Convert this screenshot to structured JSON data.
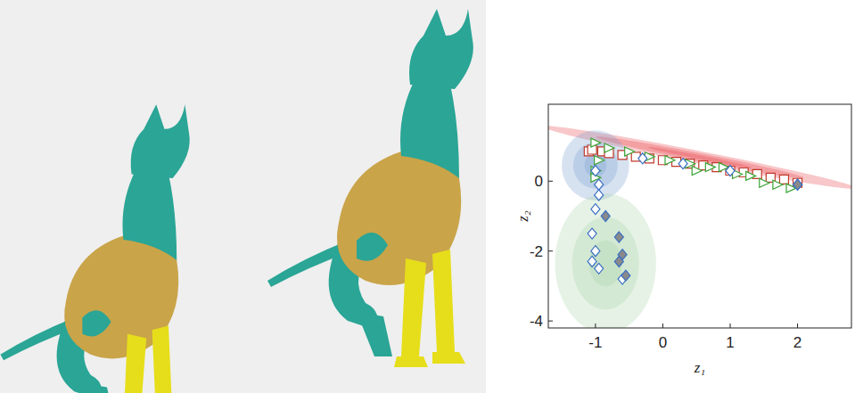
{
  "chart_data": {
    "type": "scatter",
    "x_label": "z₁",
    "y_label": "z₂",
    "xlim": [
      -1.7,
      2.8
    ],
    "ylim": [
      -4.2,
      2.2
    ],
    "xticks": [
      -1,
      0,
      1,
      2
    ],
    "yticks": [
      -4,
      -2,
      0
    ],
    "grid": false,
    "ellipses": [
      {
        "color": "#e8474b",
        "center": [
          0.55,
          0.68
        ],
        "radii": [
          2.5,
          0.17
        ],
        "direction": [
          1,
          -0.38
        ]
      },
      {
        "color": "#7a9fd0",
        "center": [
          -1.0,
          0.45
        ],
        "radii": [
          0.5,
          1.0
        ],
        "direction": [
          1,
          0
        ]
      },
      {
        "color": "#a9d4a9",
        "center": [
          -0.85,
          -2.35
        ],
        "radii": [
          0.75,
          2.0
        ],
        "direction": [
          1,
          0
        ]
      }
    ],
    "series": [
      {
        "color": "#c0392b",
        "marker": "square",
        "x": [
          -1.1,
          -1.05,
          -0.9,
          -0.8,
          -0.6,
          -0.4,
          -0.2,
          0,
          0.2,
          0.4,
          0.6,
          0.8,
          1.0,
          1.2,
          1.4,
          1.6,
          1.8,
          2.0
        ],
        "values": [
          0.85,
          0.9,
          0.85,
          0.8,
          0.75,
          0.7,
          0.65,
          0.6,
          0.55,
          0.5,
          0.45,
          0.4,
          0.3,
          0.25,
          0.2,
          0.1,
          0.05,
          -0.05
        ]
      },
      {
        "color": "#3aa335",
        "marker": "triangle",
        "x": [
          -1.0,
          -0.8,
          -0.95,
          -1.0,
          -1.0,
          -0.5,
          -0.2,
          0.1,
          0.4,
          0.7,
          0.9,
          1.1,
          1.3,
          1.5,
          1.7,
          1.9,
          0.5
        ],
        "values": [
          1.1,
          0.95,
          0.6,
          0.3,
          0.1,
          0.85,
          0.7,
          0.6,
          0.5,
          0.4,
          0.4,
          0.2,
          0.15,
          -0.05,
          -0.1,
          -0.2,
          0.3
        ]
      },
      {
        "color": "#3b6fc4",
        "marker": "diamond",
        "x": [
          -1.0,
          -0.95,
          -0.95,
          -1.0,
          -1.05,
          -1.0,
          -1.05,
          -0.95,
          -0.6,
          0.3,
          1.0,
          2.0,
          -0.3
        ],
        "values": [
          0.3,
          -0.1,
          -0.4,
          -0.8,
          -1.5,
          -2.0,
          -2.3,
          -2.5,
          -2.8,
          0.5,
          0.3,
          -0.1,
          0.65
        ]
      },
      {
        "color": "#3b6fc4",
        "marker": "filled-diamond",
        "x": [
          -0.85,
          -0.65,
          -0.6,
          -0.65,
          -0.55,
          2.0
        ],
        "values": [
          -1.0,
          -1.6,
          -2.1,
          -2.3,
          -2.7,
          -0.1
        ]
      }
    ]
  }
}
